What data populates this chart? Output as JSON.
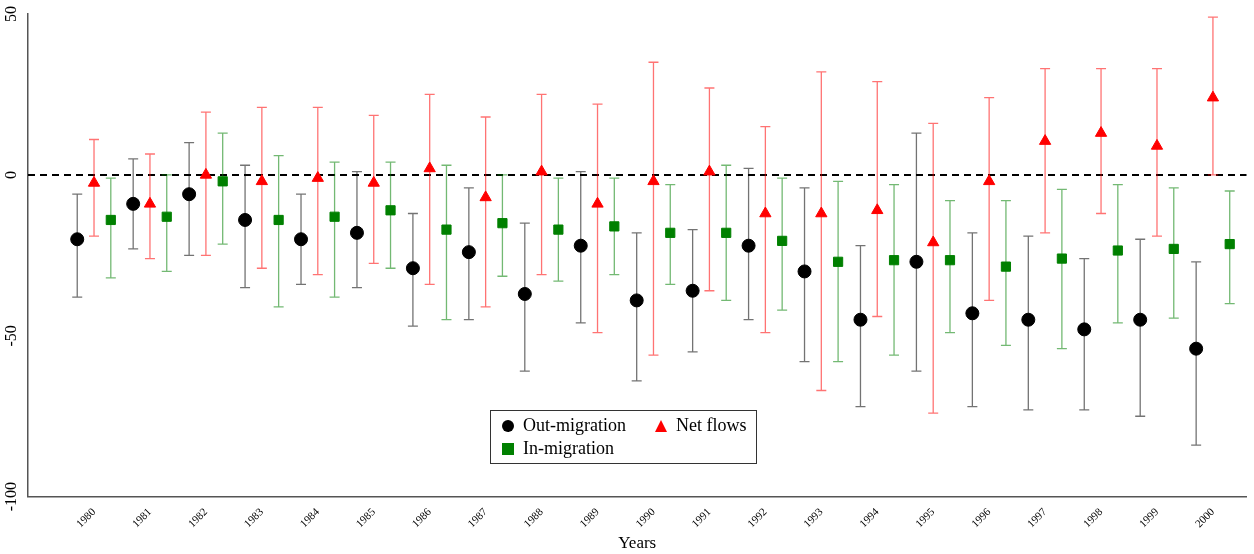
{
  "chart_data": {
    "type": "scatter",
    "xlabel": "Years",
    "categories": [
      "1980",
      "1981",
      "1982",
      "1983",
      "1984",
      "1985",
      "1986",
      "1987",
      "1988",
      "1989",
      "1990",
      "1991",
      "1992",
      "1993",
      "1994",
      "1995",
      "1996",
      "1997",
      "1998",
      "1999",
      "2000"
    ],
    "ylim": [
      -100,
      50
    ],
    "yticks": [
      -100,
      -50,
      0,
      50
    ],
    "grid": false,
    "legend": "bottom",
    "ref_lines": [
      {
        "axis": "y",
        "value": 0,
        "color": "#000000",
        "line_style": "dashed"
      }
    ],
    "series": [
      {
        "name": "Out-migration",
        "color": "#000000",
        "marker": "circle",
        "values": [
          -20,
          -9,
          -6,
          -14,
          -20,
          -18,
          -29,
          -24,
          -37,
          -22,
          -39,
          -36,
          -22,
          -30,
          -45,
          -27,
          -43,
          -45,
          -48,
          -45,
          -54
        ],
        "errors": [
          [
            -38,
            -6
          ],
          [
            -23,
            5
          ],
          [
            -25,
            10
          ],
          [
            -35,
            3
          ],
          [
            -34,
            -6
          ],
          [
            -35,
            1
          ],
          [
            -47,
            -12
          ],
          [
            -45,
            -4
          ],
          [
            -61,
            -15
          ],
          [
            -46,
            1
          ],
          [
            -64,
            -18
          ],
          [
            -55,
            -17
          ],
          [
            -45,
            2
          ],
          [
            -58,
            -4
          ],
          [
            -72,
            -22
          ],
          [
            -61,
            13
          ],
          [
            -72,
            -18
          ],
          [
            -73,
            -19
          ],
          [
            -73,
            -26
          ],
          [
            -75,
            -20
          ],
          [
            -84,
            -27
          ]
        ]
      },
      {
        "name": "Net flows",
        "color": "#ff0000",
        "marker": "triangle",
        "values": [
          -2.5,
          -9,
          0,
          -2,
          -1,
          -2.5,
          2,
          -7,
          1,
          -9,
          -2,
          1,
          -12,
          -12,
          -11,
          -21,
          -2,
          10.5,
          13,
          9,
          24
        ],
        "errors": [
          [
            -19,
            11
          ],
          [
            -26,
            6.5
          ],
          [
            -25,
            19.5
          ],
          [
            -29,
            21
          ],
          [
            -31,
            21
          ],
          [
            -27.5,
            18.5
          ],
          [
            -34,
            25
          ],
          [
            -41,
            18
          ],
          [
            -31,
            25
          ],
          [
            -49,
            22
          ],
          [
            -56,
            35
          ],
          [
            -36,
            27
          ],
          [
            -49,
            15
          ],
          [
            -67,
            32
          ],
          [
            -44,
            29
          ],
          [
            -74,
            16
          ],
          [
            -39,
            24
          ],
          [
            -18,
            33
          ],
          [
            -12,
            33
          ],
          [
            -19,
            33
          ],
          [
            0,
            49
          ]
        ]
      },
      {
        "name": "In-migration",
        "color": "#008000",
        "marker": "square",
        "values": [
          -14,
          -13,
          -2,
          -14,
          -13,
          -11,
          -17,
          -15,
          -17,
          -16,
          -18,
          -18,
          -20.5,
          -27,
          -26.5,
          -26.5,
          -28.5,
          -26,
          -23.5,
          -23,
          -21.5
        ],
        "errors": [
          [
            -32,
            -1
          ],
          [
            -30,
            0
          ],
          [
            -21.5,
            13
          ],
          [
            -41,
            6
          ],
          [
            -38,
            4
          ],
          [
            -29,
            4
          ],
          [
            -45,
            3
          ],
          [
            -31.5,
            0
          ],
          [
            -33,
            -1
          ],
          [
            -31,
            -1
          ],
          [
            -34,
            -3
          ],
          [
            -39,
            3
          ],
          [
            -42,
            -1
          ],
          [
            -58,
            -2
          ],
          [
            -56,
            -3
          ],
          [
            -49,
            -8
          ],
          [
            -53,
            -8
          ],
          [
            -54,
            -4.5
          ],
          [
            -46,
            -3
          ],
          [
            -44.5,
            -4
          ],
          [
            -40,
            -5
          ]
        ]
      }
    ]
  }
}
